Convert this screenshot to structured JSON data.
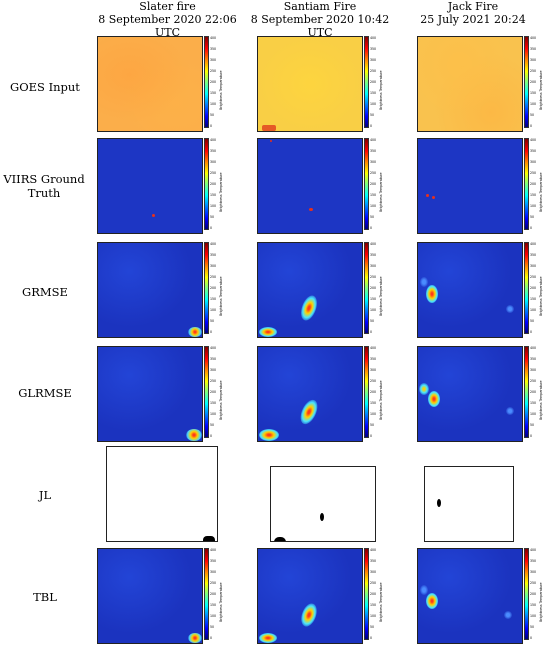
{
  "columns": [
    {
      "title": "Slater fire",
      "subtitle": "8 September 2020 22:06 UTC"
    },
    {
      "title": "Santiam Fire",
      "subtitle": "8 September 2020 10:42 UTC"
    },
    {
      "title": "Jack Fire",
      "subtitle": "25 July 2021 20:24"
    }
  ],
  "rows": [
    {
      "label": "GOES Input"
    },
    {
      "label": "VIIRS Ground Truth"
    },
    {
      "label": "GRMSE"
    },
    {
      "label": "GLRMSE"
    },
    {
      "label": "JL"
    },
    {
      "label": "TBL"
    }
  ],
  "colorbar": {
    "title": "Brightness Temperature",
    "ticks": [
      "400",
      "350",
      "300",
      "250",
      "200",
      "150",
      "100",
      "50",
      "0"
    ]
  },
  "colors": {
    "goes_orange": "#fbae4a",
    "goes_yellow": "#f9cf45",
    "map_blue": "#1d36c4",
    "hot_red": "#e8301a"
  }
}
